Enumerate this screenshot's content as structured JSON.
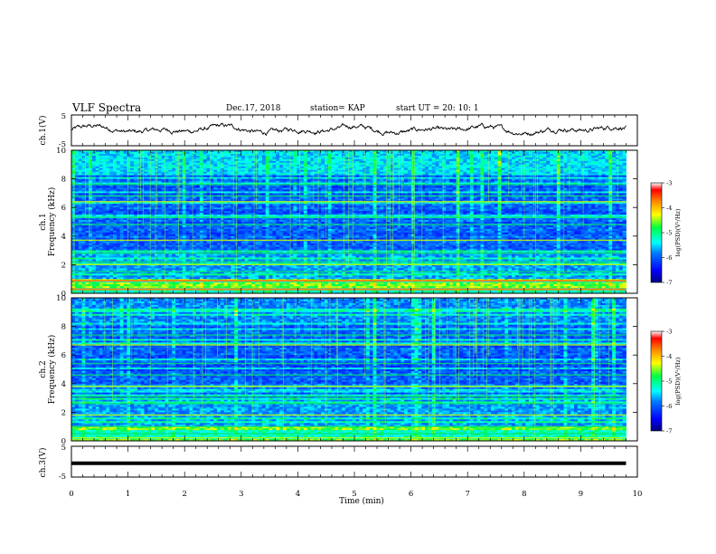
{
  "header": {
    "title": "VLF Spectra",
    "date": "Dec.17, 2018",
    "station": "station= KAP",
    "start": "start  UT =    20: 10: 1"
  },
  "chart_data": [
    {
      "type": "line",
      "name": "ch1-waveform",
      "ylabel": "ch.1(V)",
      "ylim": [
        -5,
        5
      ],
      "yticks": [
        "5",
        "-5"
      ],
      "xlim": [
        0,
        10
      ],
      "x_end": 9.8,
      "mean": 0.2,
      "amplitude": 2.2
    },
    {
      "type": "heatmap",
      "name": "ch1-spectrogram",
      "ylabel": "ch.1\nFrequency  (kHz)",
      "ylim": [
        0,
        10
      ],
      "yticks": [
        "0",
        "2",
        "4",
        "6",
        "8",
        "10"
      ],
      "xlim": [
        0,
        9.8
      ],
      "colorbar": {
        "label": "log(PSD)(V²/Hz)",
        "min": -7,
        "max": -3,
        "ticks": [
          "-3",
          "-4",
          "-5",
          "-6",
          "-7"
        ]
      }
    },
    {
      "type": "heatmap",
      "name": "ch2-spectrogram",
      "ylabel": "ch.2\nFrequency  (kHz)",
      "ylim": [
        0,
        10
      ],
      "yticks": [
        "0",
        "2",
        "4",
        "6",
        "8",
        "10"
      ],
      "xlim": [
        0,
        9.8
      ],
      "colorbar": {
        "label": "log(PSD)(V²/Hz)",
        "min": -7,
        "max": -3,
        "ticks": [
          "-3",
          "-4",
          "-5",
          "-6",
          "-7"
        ]
      }
    },
    {
      "type": "line",
      "name": "ch3-waveform",
      "ylabel": "ch.3(V)",
      "ylim": [
        -5,
        5
      ],
      "yticks": [
        "5",
        "-5"
      ],
      "xlim": [
        0,
        10
      ],
      "x_end": 9.8,
      "mean": -0.5,
      "amplitude": 0
    }
  ],
  "xaxis": {
    "label": "Time  (min)",
    "ticks": [
      "0",
      "1",
      "2",
      "3",
      "4",
      "5",
      "6",
      "7",
      "8",
      "9",
      "10"
    ]
  },
  "colors": {
    "trace": "#000000",
    "axes": "#000000"
  }
}
